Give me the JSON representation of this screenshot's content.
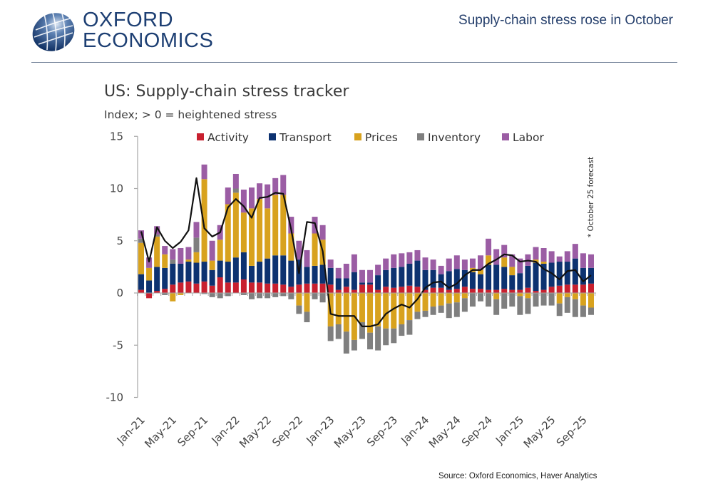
{
  "header": {
    "logo_line1": "OXFORD",
    "logo_line2": "ECONOMICS",
    "headline": "Supply-chain stress rose in October",
    "brand_color": "#1d3f73"
  },
  "footer": {
    "source": "Source: Oxford Economics, Haver Analytics"
  },
  "chart_data": {
    "type": "bar",
    "stacked": true,
    "title": "US: Supply-chain stress tracker",
    "subtitle": "Index; > 0 = heightened stress",
    "xlabel": "",
    "ylabel": "",
    "ylim": [
      -10,
      15
    ],
    "yticks": [
      15,
      10,
      5,
      0,
      -5,
      -10
    ],
    "xtick_labels": [
      "Jan-21",
      "May-21",
      "Sep-21",
      "Jan-22",
      "May-22",
      "Sep-22",
      "Jan-23",
      "May-23",
      "Sep-23",
      "Jan-24",
      "May-24",
      "Sep-24",
      "Jan-25",
      "May-25",
      "Sep-25"
    ],
    "annotation": "* October 25  forecast",
    "legend_position": "top",
    "categories": [
      "Jan-21",
      "Feb-21",
      "Mar-21",
      "Apr-21",
      "May-21",
      "Jun-21",
      "Jul-21",
      "Aug-21",
      "Sep-21",
      "Oct-21",
      "Nov-21",
      "Dec-21",
      "Jan-22",
      "Feb-22",
      "Mar-22",
      "Apr-22",
      "May-22",
      "Jun-22",
      "Jul-22",
      "Aug-22",
      "Sep-22",
      "Oct-22",
      "Nov-22",
      "Dec-22",
      "Jan-23",
      "Feb-23",
      "Mar-23",
      "Apr-23",
      "May-23",
      "Jun-23",
      "Jul-23",
      "Aug-23",
      "Sep-23",
      "Oct-23",
      "Nov-23",
      "Dec-23",
      "Jan-24",
      "Feb-24",
      "Mar-24",
      "Apr-24",
      "May-24",
      "Jun-24",
      "Jul-24",
      "Aug-24",
      "Sep-24",
      "Oct-24",
      "Nov-24",
      "Dec-24",
      "Jan-25",
      "Feb-25",
      "Mar-25",
      "Apr-25",
      "May-25",
      "Jun-25",
      "Jul-25",
      "Aug-25",
      "Sep-25",
      "Oct-25"
    ],
    "series": [
      {
        "name": "Activity",
        "color": "#c8202f",
        "values": [
          0.3,
          -0.5,
          0.2,
          0.4,
          0.8,
          1.0,
          1.1,
          0.9,
          1.1,
          0.7,
          1.5,
          1.0,
          1.0,
          1.3,
          1.0,
          1.0,
          0.9,
          0.9,
          0.8,
          0.6,
          0.8,
          0.9,
          0.9,
          0.9,
          0.8,
          0.3,
          0.6,
          0.3,
          0.8,
          0.8,
          0.3,
          0.6,
          0.5,
          0.6,
          0.7,
          0.6,
          0.3,
          0.5,
          0.5,
          0.3,
          0.4,
          0.6,
          0.4,
          0.4,
          0.3,
          0.3,
          0.4,
          0.3,
          0.3,
          0.5,
          0.2,
          0.3,
          0.6,
          0.7,
          0.8,
          0.8,
          0.8,
          0.9
        ]
      },
      {
        "name": "Transport",
        "color": "#0d3270",
        "values": [
          1.5,
          1.2,
          2.3,
          2.0,
          2.0,
          1.8,
          1.9,
          2.0,
          1.9,
          1.5,
          1.6,
          2.0,
          2.4,
          2.6,
          1.6,
          2.0,
          2.4,
          2.7,
          2.8,
          2.5,
          2.4,
          1.6,
          1.7,
          1.8,
          1.6,
          1.1,
          0.8,
          1.7,
          0.2,
          0.2,
          1.4,
          1.6,
          1.9,
          1.9,
          2.1,
          2.5,
          1.9,
          1.7,
          1.3,
          1.8,
          1.9,
          1.6,
          1.6,
          1.4,
          2.4,
          2.4,
          2.1,
          1.4,
          1.6,
          2.1,
          2.7,
          2.5,
          2.3,
          2.3,
          2.2,
          2.5,
          1.6,
          1.5
        ]
      },
      {
        "name": "Prices",
        "color": "#d8a21e",
        "values": [
          3.0,
          1.2,
          2.9,
          1.3,
          -0.8,
          -0.2,
          0.2,
          1.0,
          7.9,
          0.9,
          2.0,
          5.5,
          6.2,
          3.8,
          5.5,
          6.0,
          4.8,
          5.8,
          5.8,
          2.6,
          -1.2,
          -1.8,
          3.1,
          2.4,
          -3.2,
          -3.0,
          -3.7,
          -4.5,
          -2.8,
          -3.8,
          -3.2,
          -3.4,
          -3.4,
          -3.0,
          -2.6,
          -1.8,
          -1.7,
          -1.3,
          -1.2,
          -1.0,
          -0.9,
          -0.5,
          0.4,
          0.4,
          0.9,
          -0.6,
          0.9,
          0.8,
          -0.3,
          -0.5,
          0.3,
          0.2,
          0.0,
          -1.0,
          -0.4,
          -0.6,
          -1.2,
          -1.4
        ]
      },
      {
        "name": "Inventory",
        "color": "#7f7f7f",
        "values": [
          0.4,
          0.0,
          0.2,
          -0.2,
          0.4,
          0.0,
          0.0,
          1.4,
          -0.1,
          -0.4,
          -0.5,
          -0.3,
          0.4,
          -0.2,
          -0.6,
          -0.5,
          -0.5,
          -0.4,
          -0.3,
          -0.6,
          -0.8,
          -1.0,
          -0.6,
          -0.9,
          -1.4,
          -1.4,
          -2.1,
          -1.0,
          -1.6,
          -1.6,
          -2.3,
          -1.6,
          -1.4,
          -1.1,
          -1.4,
          -0.7,
          -0.6,
          -0.8,
          -0.7,
          -1.4,
          -1.4,
          -1.3,
          -1.3,
          -0.8,
          -1.3,
          -1.5,
          -1.5,
          -1.3,
          -1.8,
          -1.5,
          -1.3,
          -1.2,
          -1.2,
          -1.2,
          -1.5,
          -1.7,
          -1.1,
          -0.7
        ]
      },
      {
        "name": "Labor",
        "color": "#9b5da4",
        "values": [
          0.8,
          1.0,
          0.8,
          0.8,
          1.0,
          1.5,
          1.2,
          1.5,
          1.4,
          1.9,
          1.4,
          1.6,
          1.4,
          2.2,
          2.0,
          1.5,
          2.3,
          1.6,
          1.9,
          1.6,
          1.8,
          1.6,
          1.6,
          1.4,
          0.8,
          1.0,
          1.4,
          1.7,
          1.2,
          1.2,
          1.0,
          1.1,
          1.3,
          1.3,
          1.1,
          1.0,
          1.2,
          1.0,
          0.8,
          1.2,
          1.3,
          1.0,
          0.9,
          1.4,
          1.6,
          1.5,
          1.2,
          1.2,
          1.4,
          1.1,
          1.2,
          1.3,
          1.1,
          0.5,
          1.0,
          1.4,
          1.4,
          1.3
        ]
      }
    ],
    "line": {
      "name": "Total",
      "color": "#111111",
      "values": [
        5.9,
        3.0,
        6.3,
        5.0,
        4.3,
        4.9,
        6.0,
        11.0,
        6.2,
        5.4,
        5.8,
        8.2,
        9.0,
        8.3,
        7.2,
        9.1,
        9.2,
        9.6,
        9.5,
        6.1,
        1.9,
        6.8,
        6.7,
        4.0,
        -2.0,
        -2.2,
        -2.2,
        -2.2,
        -3.2,
        -3.2,
        -3.0,
        -2.0,
        -1.5,
        -1.1,
        -1.4,
        -0.6,
        0.5,
        1.0,
        1.1,
        0.5,
        0.9,
        1.7,
        2.2,
        2.2,
        2.8,
        3.2,
        3.7,
        3.6,
        3.0,
        3.1,
        3.0,
        2.3,
        1.9,
        1.3,
        2.1,
        2.2,
        1.1,
        1.7
      ]
    }
  },
  "legend": {
    "items": [
      "Activity",
      "Transport",
      "Prices",
      "Inventory",
      "Labor"
    ]
  }
}
